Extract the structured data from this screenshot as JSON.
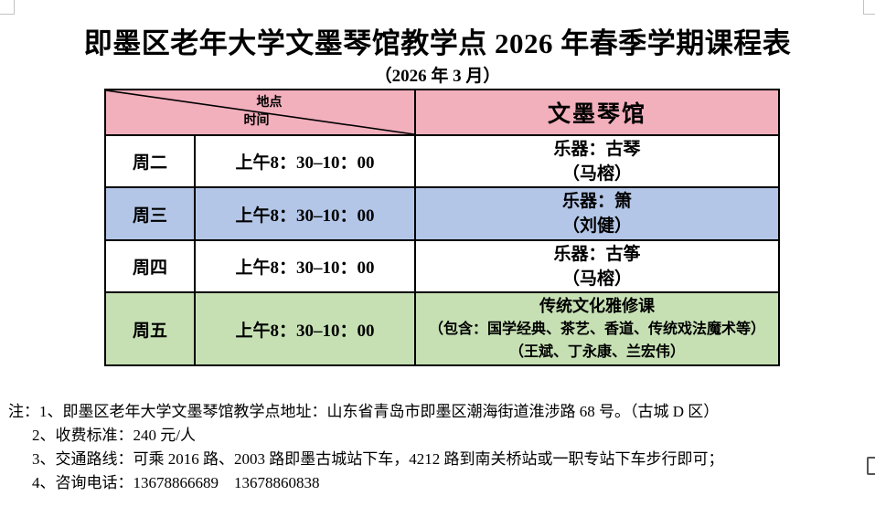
{
  "document": {
    "title": "即墨区老年大学文墨琴馆教学点 2026 年春季学期课程表",
    "subtitle": "（2026 年 3 月）"
  },
  "table": {
    "corner": {
      "location_label": "地点",
      "time_label": "时间"
    },
    "venue_header": "文墨琴馆",
    "colors": {
      "header_bg": "#F2AFBC",
      "row_white": "#FFFFFF",
      "row_blue": "#B3C6E7",
      "row_green": "#C6E0B4",
      "border": "#000000"
    },
    "rows": [
      {
        "day": "周二",
        "time": "上午8：30–10：00",
        "bg": "#FFFFFF",
        "lines": [
          "乐器：古琴",
          "（马榕）"
        ]
      },
      {
        "day": "周三",
        "time": "上午8：30–10：00",
        "bg": "#B3C6E7",
        "lines": [
          "乐器：箫",
          "（刘健）"
        ]
      },
      {
        "day": "周四",
        "time": "上午8：30–10：00",
        "bg": "#FFFFFF",
        "lines": [
          "乐器：古筝",
          "（马榕）"
        ]
      },
      {
        "day": "周五",
        "time": "上午8：30–10：00",
        "bg": "#C6E0B4",
        "lines": [
          "传统文化雅修课",
          "（包含：国学经典、茶艺、香道、传统戏法魔术等）",
          "（王斌、丁永康、兰宏伟）"
        ]
      }
    ]
  },
  "notes": {
    "prefix": "注：",
    "items": [
      "1、即墨区老年大学文墨琴馆教学点地址：山东省青岛市即墨区潮海街道淮涉路 68 号。（古城 D 区）",
      "2、收费标准：240 元/人",
      "3、交通路线：可乘 2016 路、2003 路即墨古城站下车，4212 路到南关桥站或一职专站下车步行即可；",
      "4、咨询电话：13678866689　13678860838"
    ]
  }
}
